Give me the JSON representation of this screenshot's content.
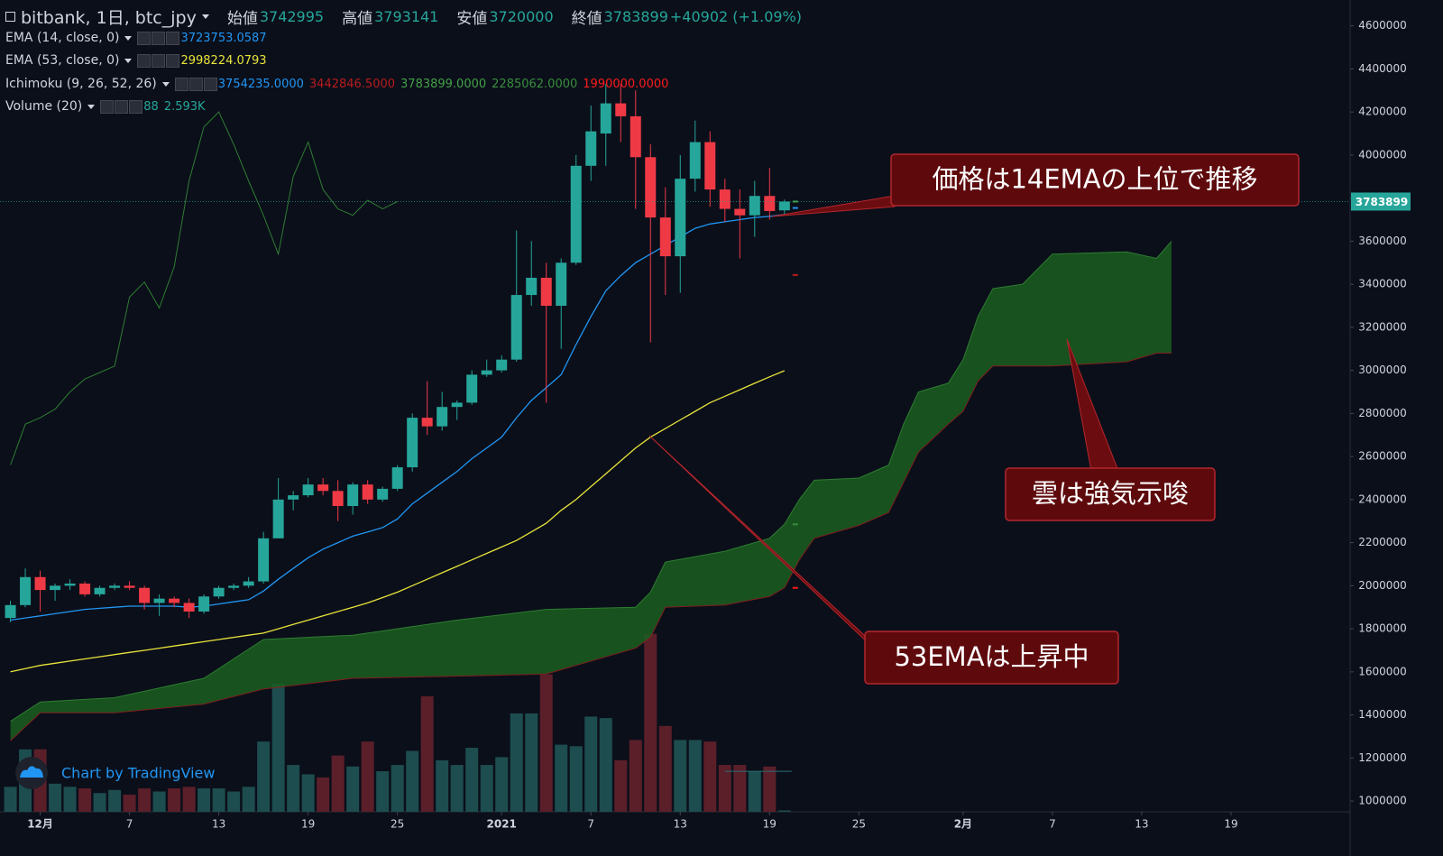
{
  "chart_data": {
    "type": "candlestick",
    "title": "bitbank, 1日, btc_jpy",
    "ohlc_labels": [
      "始値",
      "高値",
      "安値",
      "終値"
    ],
    "change_label": "+40902 (+1.09%)",
    "x": [
      0,
      1,
      2,
      3,
      4,
      5,
      6,
      7,
      8,
      9,
      10,
      11,
      12,
      13,
      14,
      15,
      16,
      17,
      18,
      19,
      20,
      21,
      22,
      23,
      24,
      25,
      26,
      27,
      28,
      29,
      30,
      31,
      32,
      33,
      34,
      35,
      36,
      37,
      38,
      39,
      40,
      41,
      42,
      43,
      44,
      45,
      46,
      47,
      48,
      49,
      50,
      51,
      52
    ],
    "open": [
      1850000,
      1910000,
      2040000,
      1980000,
      2000000,
      2010000,
      1960000,
      1990000,
      2000000,
      1990000,
      1920000,
      1940000,
      1920000,
      1880000,
      1950000,
      1990000,
      2000000,
      2020000,
      2220000,
      2400000,
      2420000,
      2470000,
      2440000,
      2370000,
      2470000,
      2400000,
      2450000,
      2550000,
      2780000,
      2740000,
      2830000,
      2850000,
      2980000,
      3000000,
      3050000,
      3350000,
      3430000,
      3300000,
      3500000,
      3950000,
      4100000,
      4240000,
      4180000,
      3990000,
      3710000,
      3530000,
      3890000,
      4060000,
      3840000,
      3750000,
      3720000,
      3810000,
      3742995
    ],
    "high": [
      1930000,
      2080000,
      2070000,
      2010000,
      2030000,
      2020000,
      2000000,
      2010000,
      2020000,
      2000000,
      1960000,
      1950000,
      1940000,
      1960000,
      2000000,
      2010000,
      2040000,
      2250000,
      2500000,
      2440000,
      2500000,
      2500000,
      2490000,
      2480000,
      2490000,
      2460000,
      2560000,
      2800000,
      2950000,
      2900000,
      2860000,
      3000000,
      3050000,
      3070000,
      3650000,
      3600000,
      3500000,
      3520000,
      4000000,
      4230000,
      4330000,
      4330000,
      4300000,
      4050000,
      3850000,
      4000000,
      4160000,
      4110000,
      3890000,
      3840000,
      3880000,
      3940000,
      3793141
    ],
    "low": [
      1830000,
      1900000,
      1880000,
      1930000,
      1980000,
      1950000,
      1950000,
      1980000,
      1980000,
      1890000,
      1860000,
      1900000,
      1850000,
      1870000,
      1940000,
      1980000,
      1990000,
      2010000,
      2220000,
      2350000,
      2410000,
      2420000,
      2300000,
      2330000,
      2380000,
      2390000,
      2440000,
      2530000,
      2700000,
      2720000,
      2770000,
      2840000,
      2970000,
      2990000,
      3040000,
      3300000,
      2850000,
      3100000,
      3490000,
      3880000,
      3950000,
      4060000,
      3750000,
      3130000,
      3350000,
      3360000,
      3830000,
      3760000,
      3690000,
      3520000,
      3620000,
      3700000,
      3720000
    ],
    "close": [
      1910000,
      2040000,
      1980000,
      2000000,
      2010000,
      1960000,
      1990000,
      2000000,
      1990000,
      1920000,
      1940000,
      1920000,
      1880000,
      1950000,
      1990000,
      2000000,
      2020000,
      2220000,
      2400000,
      2420000,
      2470000,
      2440000,
      2370000,
      2470000,
      2400000,
      2450000,
      2550000,
      2780000,
      2740000,
      2830000,
      2850000,
      2980000,
      3000000,
      3050000,
      3350000,
      3430000,
      3300000,
      3500000,
      3950000,
      4110000,
      4240000,
      4180000,
      3990000,
      3710000,
      3530000,
      3890000,
      4060000,
      3840000,
      3750000,
      3720000,
      3810000,
      3740000,
      3783899
    ],
    "up_color": "#26a69a",
    "down_color": "#ef3a45",
    "series": [
      {
        "name": "EMA (14, close, 0)",
        "color": "#2196f3",
        "values": [
          1840000,
          1850000,
          1860000,
          1870000,
          1880000,
          1890000,
          1895000,
          1900000,
          1905000,
          1905000,
          1905000,
          1905000,
          1900000,
          1905000,
          1915000,
          1925000,
          1935000,
          1975000,
          2030000,
          2080000,
          2130000,
          2170000,
          2200000,
          2230000,
          2250000,
          2270000,
          2310000,
          2380000,
          2430000,
          2480000,
          2530000,
          2590000,
          2640000,
          2690000,
          2780000,
          2860000,
          2920000,
          2980000,
          3120000,
          3250000,
          3370000,
          3440000,
          3500000,
          3540000,
          3580000,
          3620000,
          3660000,
          3680000,
          3690000,
          3700000,
          3710000,
          3715000,
          3723753.0587
        ]
      },
      {
        "name": "EMA (53, close, 0)",
        "color": "#e8e43a",
        "values": [
          1600000,
          1615000,
          1630000,
          1640000,
          1650000,
          1660000,
          1670000,
          1680000,
          1690000,
          1700000,
          1710000,
          1720000,
          1730000,
          1740000,
          1750000,
          1760000,
          1770000,
          1780000,
          1800000,
          1820000,
          1840000,
          1860000,
          1880000,
          1900000,
          1920000,
          1945000,
          1970000,
          2000000,
          2030000,
          2060000,
          2090000,
          2120000,
          2150000,
          2180000,
          2210000,
          2250000,
          2290000,
          2350000,
          2400000,
          2460000,
          2520000,
          2580000,
          2640000,
          2690000,
          2730000,
          2770000,
          2810000,
          2850000,
          2880000,
          2910000,
          2940000,
          2970000,
          2998224.0793
        ]
      }
    ],
    "ichimoku": {
      "name": "Ichimoku (9, 26, 52, 26)",
      "legend_values": [
        {
          "value": 3754235,
          "label": "3754235.0000",
          "color": "#2196f3"
        },
        {
          "value": 3442846.5,
          "label": "3442846.5000",
          "color": "#b71c1c"
        },
        {
          "value": 3783899,
          "label": "3783899.0000",
          "color": "#43a047"
        },
        {
          "value": 2285062,
          "label": "2285062.0000",
          "color": "#388e3c"
        },
        {
          "value": 1990000,
          "label": "1990000.0000",
          "color": "#ff1a1a"
        }
      ],
      "lagging": {
        "color": "#2e7d32",
        "x": [
          0,
          1,
          2,
          3,
          4,
          5,
          6,
          7,
          8,
          9,
          10,
          11,
          12,
          13,
          14,
          15,
          16,
          17,
          18,
          19,
          20,
          21,
          22,
          23,
          24,
          25,
          26
        ],
        "values": [
          2560000,
          2750000,
          2780000,
          2820000,
          2900000,
          2960000,
          2990000,
          3020000,
          3340000,
          3410000,
          3290000,
          3480000,
          3880000,
          4130000,
          4200000,
          4050000,
          3880000,
          3720000,
          3540000,
          3900000,
          4060000,
          3840000,
          3750000,
          3720000,
          3790000,
          3750000,
          3783899
        ]
      },
      "cloud": {
        "color": "#1b5e20",
        "edge_a": "#2e7d32",
        "edge_b": "#7f1d1d",
        "x": [
          0,
          2,
          7,
          13,
          17,
          23,
          30,
          36,
          42,
          43,
          44,
          48,
          51,
          52,
          53,
          54,
          57,
          59,
          60,
          61,
          63,
          64,
          65,
          66,
          68,
          70,
          75,
          77,
          78
        ],
        "span_a": [
          1370000,
          1460000,
          1480000,
          1570000,
          1750000,
          1770000,
          1840000,
          1890000,
          1900000,
          1970000,
          2110000,
          2160000,
          2220000,
          2285062,
          2400000,
          2490000,
          2500000,
          2560000,
          2750000,
          2900000,
          2940000,
          3050000,
          3250000,
          3380000,
          3400000,
          3540000,
          3550000,
          3520000,
          3600000
        ],
        "span_b": [
          1280000,
          1410000,
          1410000,
          1450000,
          1520000,
          1570000,
          1580000,
          1590000,
          1710000,
          1760000,
          1900000,
          1910000,
          1950000,
          1990000,
          2120000,
          2220000,
          2280000,
          2340000,
          2480000,
          2620000,
          2750000,
          2810000,
          2950000,
          3020000,
          3020000,
          3020000,
          3040000,
          3080000,
          3080000
        ]
      }
    },
    "volume": {
      "name": "Volume (20)",
      "values": [
        1600,
        4000,
        4000,
        1800,
        1600,
        1500,
        1200,
        1400,
        1100,
        1500,
        1300,
        1500,
        1600,
        1500,
        1500,
        1300,
        1600,
        4500,
        8200,
        3000,
        2400,
        2200,
        3600,
        2900,
        4500,
        2600,
        3000,
        3900,
        7400,
        3300,
        3000,
        4100,
        3000,
        3500,
        6300,
        6300,
        8800,
        4300,
        4200,
        6100,
        6000,
        3300,
        4600,
        11400,
        5500,
        4600,
        4600,
        4500,
        3000,
        3000,
        2600,
        2900,
        88
      ],
      "ma": {
        "value": 2593,
        "label": "2.593K"
      },
      "up_color": "#1d4d4f",
      "down_color": "#5b1f2a"
    },
    "xlim": [
      -0.7,
      90
    ],
    "xticks": [
      {
        "value": 2,
        "label": "12月"
      },
      {
        "value": 8,
        "label": "7"
      },
      {
        "value": 14,
        "label": "13"
      },
      {
        "value": 20,
        "label": "19"
      },
      {
        "value": 26,
        "label": "25"
      },
      {
        "value": 33,
        "label": "2021"
      },
      {
        "value": 39,
        "label": "7"
      },
      {
        "value": 45,
        "label": "13"
      },
      {
        "value": 51,
        "label": "19"
      },
      {
        "value": 57,
        "label": "25"
      },
      {
        "value": 64,
        "label": "2月"
      },
      {
        "value": 70,
        "label": "7"
      },
      {
        "value": 76,
        "label": "13"
      },
      {
        "value": 82,
        "label": "19"
      }
    ],
    "ylim": [
      950000,
      4720000
    ],
    "yticks": [
      1000000,
      1200000,
      1400000,
      1600000,
      1800000,
      2000000,
      2200000,
      2400000,
      2600000,
      2800000,
      3000000,
      3200000,
      3400000,
      3600000,
      3800000,
      4000000,
      4200000,
      4400000,
      4600000
    ],
    "y2lim": [
      0,
      52000
    ],
    "grid": false,
    "annotations": [
      "価格は14EMAの上位で推移",
      "雲は強気示唆",
      "53EMAは上昇中"
    ],
    "watermark": "Chart by TradingView"
  }
}
